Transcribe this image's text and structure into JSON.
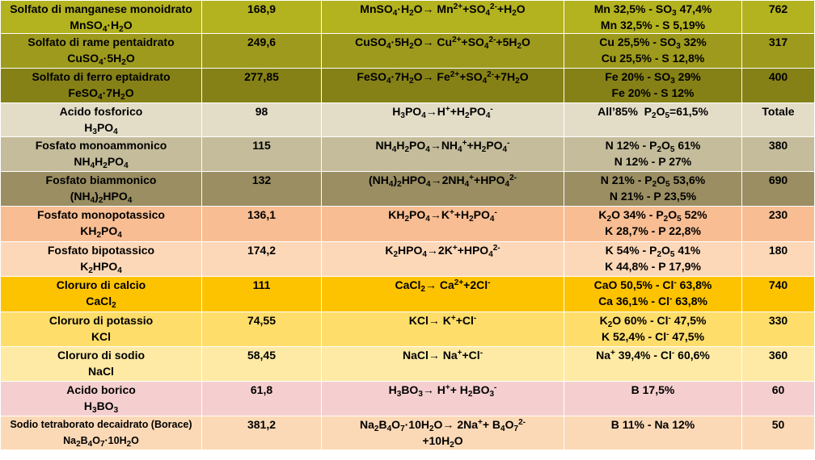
{
  "rows": [
    {
      "bg": "#b3b21f",
      "name": "Solfato di manganese monoidrato",
      "formula": "MnSO<sub>4</sub>·H<sub>2</sub>O",
      "mw": "168,9",
      "reaction": [
        "MnSO<sub>4</sub>·H<sub>2</sub>O→ Mn<sup>2+</sup>+SO<sub>4</sub><sup>2-</sup>+H<sub>2</sub>O"
      ],
      "content": [
        "Mn 32,5% - SO<sub>3</sub> 47,4%",
        "Mn 32,5% - S 5,19%"
      ],
      "value": "762"
    },
    {
      "bg": "#9e9a1d",
      "name": "Solfato di rame pentaidrato",
      "formula": "CuSO<sub>4</sub>·5H<sub>2</sub>O",
      "mw": "249,6",
      "reaction": [
        "CuSO<sub>4</sub>·5H<sub>2</sub>O→ Cu<sup>2+</sup>+SO<sub>4</sub><sup>2-</sup>+5H<sub>2</sub>O"
      ],
      "content": [
        "Cu 25,5% - SO<sub>3</sub> 32%",
        "Cu 25,5% - S 12,8%"
      ],
      "value": "317"
    },
    {
      "bg": "#868116",
      "name": "Solfato di ferro eptaidrato",
      "formula": "FeSO<sub>4</sub>·7H<sub>2</sub>O",
      "mw": "277,85",
      "reaction": [
        "FeSO<sub>4</sub>·7H<sub>2</sub>O→ Fe<sup>2+</sup>+SO<sub>4</sub><sup>2-</sup>+7H<sub>2</sub>O"
      ],
      "content": [
        "Fe 20% - SO<sub>3</sub> 29%",
        "Fe 20% - S 12%"
      ],
      "value": "400"
    },
    {
      "bg": "#e3ddc8",
      "name": "Acido fosforico",
      "formula": "H<sub>3</sub>PO<sub>4</sub>",
      "mw": "98",
      "reaction": [
        "H<sub>3</sub>PO<sub>4</sub>→H<sup>+</sup>+H<sub>2</sub>PO<sub>4</sub><sup>-</sup>"
      ],
      "content": [
        "All’85%&nbsp;&nbsp;P<sub>2</sub>O<sub>5</sub>=61,5%"
      ],
      "value": "Totale"
    },
    {
      "bg": "#c4bc9a",
      "name": "Fosfato monoammonico",
      "formula": "NH<sub>4</sub>H<sub>2</sub>PO<sub>4</sub>",
      "mw": "115",
      "reaction": [
        "NH<sub>4</sub>H<sub>2</sub>PO<sub>4</sub>→NH<sub>4</sub><sup>+</sup>+H<sub>2</sub>PO<sub>4</sub><sup>-</sup>"
      ],
      "content": [
        "N 12% - P<sub>2</sub>O<sub>5</sub> 61%",
        "N 12% - P 27%"
      ],
      "value": "380"
    },
    {
      "bg": "#9a8e62",
      "name": "Fosfato biammonico",
      "formula": "(NH<sub>4</sub>)<sub>2</sub>HPO<sub>4</sub>",
      "mw": "132",
      "reaction": [
        "(NH<sub>4</sub>)<sub>2</sub>HPO<sub>4</sub>→2NH<sub>4</sub><sup>+</sup>+HPO<sub>4</sub><sup>2-</sup>"
      ],
      "content": [
        "N 21% - P<sub>2</sub>O<sub>5</sub> 53,6%",
        "N 21% - P 23,5%"
      ],
      "value": "690"
    },
    {
      "bg": "#f8bd92",
      "name": "Fosfato monopotassico",
      "formula": "KH<sub>2</sub>PO<sub>4</sub>",
      "mw": "136,1",
      "reaction": [
        "KH<sub>2</sub>PO<sub>4</sub>→K<sup>+</sup>+H<sub>2</sub>PO<sub>4</sub><sup>-</sup>"
      ],
      "content": [
        "K<sub>2</sub>O 34% - P<sub>2</sub>O<sub>5</sub> 52%",
        "K 28,7% - P 22,8%"
      ],
      "value": "230"
    },
    {
      "bg": "#fdd8b8",
      "name": "Fosfato bipotassico",
      "formula": "K<sub>2</sub>HPO<sub>4</sub>",
      "mw": "174,2",
      "reaction": [
        "K<sub>2</sub>HPO<sub>4</sub>→2K<sup>+</sup>+HPO<sub>4</sub><sup>2-</sup>"
      ],
      "content": [
        "K 54% - P<sub>2</sub>O<sub>5</sub> 41%",
        "K 44,8% - P 17,9%"
      ],
      "value": "180"
    },
    {
      "bg": "#fdc300",
      "name": "Cloruro di calcio",
      "formula": "CaCl<sub>2</sub>",
      "mw": "111",
      "reaction": [
        "CaCl<sub>2</sub>→ Ca<sup>2+</sup>+2Cl<sup>-</sup>"
      ],
      "content": [
        "CaO 50,5% - Cl<sup>-</sup> 63,8%",
        "Ca 36,1% - Cl<sup>-</sup> 63,8%"
      ],
      "value": "740"
    },
    {
      "bg": "#fedd6a",
      "name": "Cloruro di potassio",
      "formula": "KCl",
      "mw": "74,55",
      "reaction": [
        "KCl→ K<sup>+</sup>+Cl<sup>-</sup>"
      ],
      "content": [
        "K<sub>2</sub>O 60% - Cl<sup>-</sup> 47,5%",
        "K 52,4% - Cl<sup>-</sup> 47,5%"
      ],
      "value": "330"
    },
    {
      "bg": "#feeaa4",
      "name": "Cloruro di sodio",
      "formula": "NaCl",
      "mw": "58,45",
      "reaction": [
        "NaCl→ Na<sup>+</sup>+Cl<sup>-</sup>"
      ],
      "content": [
        "Na<sup>+</sup> 39,4% - Cl<sup>-</sup> 60,6%"
      ],
      "value": "360"
    },
    {
      "bg": "#f5cfcf",
      "name": "Acido borico",
      "formula": "H<sub>3</sub>BO<sub>3</sub>",
      "mw": "61,8",
      "reaction": [
        "H<sub>3</sub>BO<sub>3</sub>→ H<sup>+</sup>+ H<sub>2</sub>BO<sub>3</sub><sup>-</sup>"
      ],
      "content": [
        "B 17,5%"
      ],
      "value": "60"
    },
    {
      "bg": "#fcd9b6",
      "name": "Sodio tetraborato decaidrato (Borace)",
      "formula": "Na<sub>2</sub>B<sub>4</sub>O<sub>7</sub>·10H<sub>2</sub>O",
      "mw": "381,2",
      "reaction": [
        "Na<sub>2</sub>B<sub>4</sub>O<sub>7</sub>·10H<sub>2</sub>O→ 2Na<sup>+</sup>+ B<sub>4</sub>O<sub>7</sub><sup>2-</sup>",
        "+10H<sub>2</sub>O"
      ],
      "content": [
        "B 11% - Na 12%"
      ],
      "value": "50",
      "small_name": true
    }
  ]
}
